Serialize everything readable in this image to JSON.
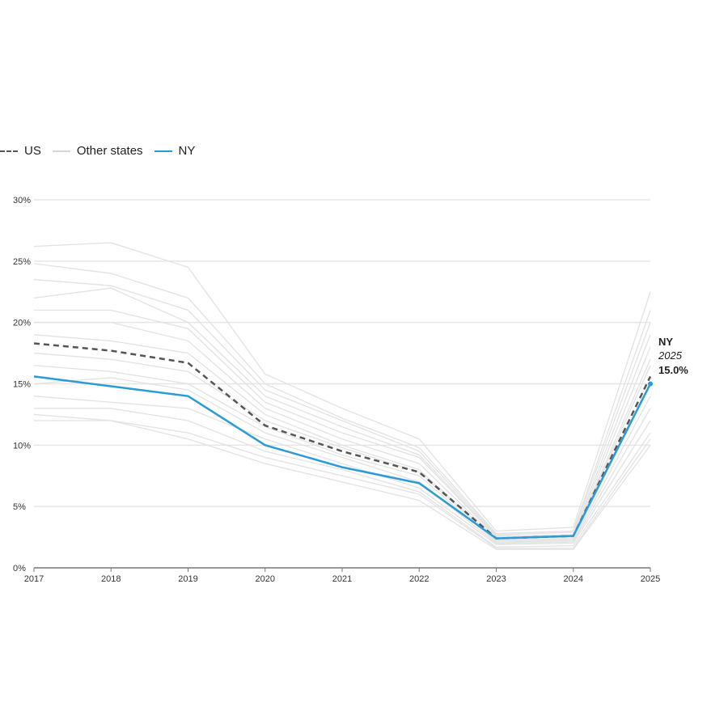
{
  "legend": [
    {
      "label": "US",
      "style": "dashed",
      "color": "#555555"
    },
    {
      "label": "Other states",
      "style": "solid",
      "color": "#d6d6d6"
    },
    {
      "label": "NY",
      "style": "solid",
      "color": "#2b9bd8"
    }
  ],
  "chart_data": {
    "type": "line",
    "x": [
      2017,
      2018,
      2019,
      2020,
      2021,
      2022,
      2023,
      2024,
      2025
    ],
    "x_tick_labels": [
      "2017",
      "2018",
      "2019",
      "2020",
      "2021",
      "2022",
      "2023",
      "2024",
      "2025"
    ],
    "y_tick_labels": [
      "0%",
      "5%",
      "10%",
      "15%",
      "20%",
      "25%",
      "30%"
    ],
    "y_ticks": [
      0,
      5,
      10,
      15,
      20,
      25,
      30
    ],
    "ylim": [
      0,
      30
    ],
    "grid": true,
    "legend_position": "top-left",
    "series": [
      {
        "name": "US",
        "color": "#555555",
        "style": "dashed",
        "values": [
          18.3,
          17.7,
          16.7,
          11.6,
          9.5,
          7.8,
          2.4,
          2.6,
          15.6
        ]
      },
      {
        "name": "NY",
        "color": "#2b9bd8",
        "style": "solid",
        "values": [
          15.6,
          14.8,
          14.0,
          10.0,
          8.2,
          6.9,
          2.4,
          2.6,
          15.0
        ]
      }
    ],
    "other_states": {
      "name": "Other states",
      "color": "#e2e2e2",
      "values": [
        [
          26.2,
          26.5,
          24.5,
          15.8,
          13.0,
          10.5,
          3.0,
          3.3,
          22.5
        ],
        [
          24.8,
          24.0,
          22.0,
          15.0,
          12.2,
          9.8,
          2.8,
          3.0,
          21.0
        ],
        [
          23.5,
          23.0,
          21.0,
          14.5,
          12.0,
          9.5,
          2.7,
          2.9,
          20.0
        ],
        [
          22.0,
          22.8,
          20.0,
          14.0,
          11.5,
          9.2,
          2.6,
          2.7,
          19.0
        ],
        [
          21.0,
          21.0,
          19.5,
          13.5,
          11.0,
          9.0,
          2.5,
          2.6,
          18.0
        ],
        [
          20.0,
          20.0,
          18.5,
          13.0,
          10.5,
          8.5,
          2.4,
          2.5,
          17.0
        ],
        [
          19.0,
          18.5,
          17.5,
          12.5,
          10.0,
          8.0,
          2.3,
          2.4,
          16.5
        ],
        [
          17.5,
          17.0,
          16.0,
          12.0,
          9.8,
          7.8,
          2.2,
          2.3,
          15.0
        ],
        [
          16.5,
          16.0,
          15.0,
          11.5,
          9.2,
          7.5,
          2.1,
          2.2,
          14.0
        ],
        [
          15.0,
          15.5,
          14.5,
          11.0,
          9.0,
          7.0,
          2.0,
          2.1,
          13.0
        ],
        [
          14.0,
          13.5,
          13.0,
          10.5,
          8.5,
          6.5,
          1.9,
          2.0,
          12.0
        ],
        [
          13.0,
          13.0,
          12.0,
          9.5,
          8.0,
          6.2,
          1.7,
          1.8,
          11.0
        ],
        [
          12.5,
          12.0,
          11.0,
          9.0,
          7.5,
          6.0,
          1.6,
          1.6,
          10.5
        ],
        [
          12.0,
          12.0,
          10.5,
          8.5,
          7.0,
          5.5,
          1.5,
          1.5,
          10.0
        ]
      ]
    },
    "annotation": {
      "series": "NY",
      "title": "NY",
      "year": "2025",
      "value": "15.0%"
    }
  }
}
